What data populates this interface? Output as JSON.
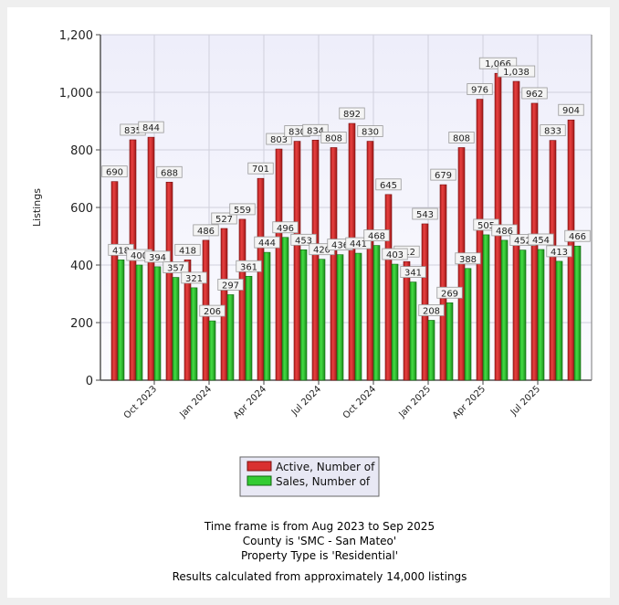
{
  "chart_data": {
    "type": "bar",
    "ylabel": "Listings",
    "ylim": [
      0,
      1200
    ],
    "yticks": [
      "0",
      "200",
      "400",
      "600",
      "800",
      "1,000",
      "1,200"
    ],
    "grid": true,
    "months": [
      "Aug 2023",
      "Sep 2023",
      "Oct 2023",
      "Nov 2023",
      "Dec 2023",
      "Jan 2024",
      "Feb 2024",
      "Mar 2024",
      "Apr 2024",
      "May 2024",
      "Jun 2024",
      "Jul 2024",
      "Aug 2024",
      "Sep 2024",
      "Oct 2024",
      "Nov 2024",
      "Dec 2024",
      "Jan 2025",
      "Feb 2025",
      "Mar 2025",
      "Apr 2025",
      "May 2025",
      "Jun 2025",
      "Jul 2025",
      "Aug 2025",
      "Sep 2025"
    ],
    "xtick_labels": [
      "Oct 2023",
      "Jan 2024",
      "Apr 2024",
      "Jul 2024",
      "Oct 2024",
      "Jan 2025",
      "Apr 2025",
      "Jul 2025"
    ],
    "series": [
      {
        "name": "Active, Number of",
        "color": "#d93030",
        "values": [
          690,
          835,
          844,
          688,
          418,
          486,
          527,
          559,
          701,
          803,
          830,
          834,
          808,
          892,
          830,
          645,
          412,
          543,
          679,
          808,
          976,
          1066,
          1038,
          962,
          833,
          904
        ]
      },
      {
        "name": "Sales, Number of",
        "color": "#33cc33",
        "values": [
          418,
          400,
          394,
          357,
          321,
          206,
          297,
          361,
          444,
          496,
          453,
          420,
          436,
          441,
          468,
          403,
          341,
          208,
          269,
          388,
          505,
          486,
          452,
          454,
          413,
          466
        ]
      }
    ],
    "legend_position": "bottom"
  },
  "caption": {
    "line1": "Time frame is from Aug 2023 to Sep 2025",
    "line2": "County is 'SMC - San Mateo'",
    "line3": "Property Type is 'Residential'",
    "line4": "Results calculated from approximately 14,000 listings"
  }
}
